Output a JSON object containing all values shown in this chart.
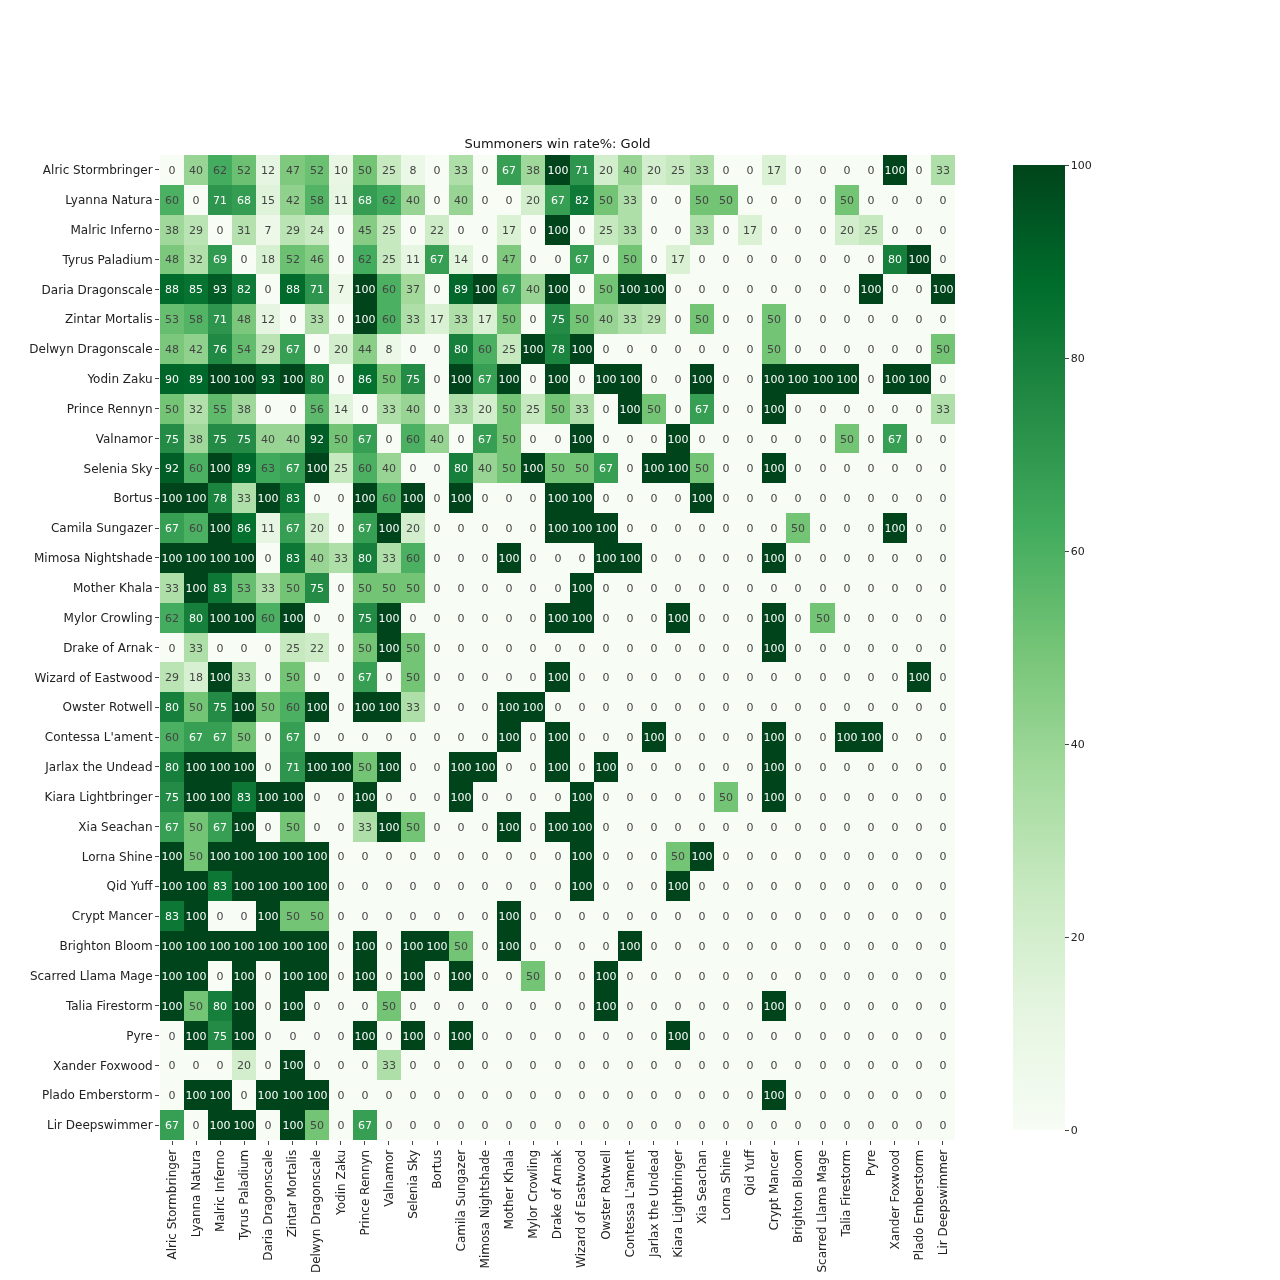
{
  "chart_data": {
    "type": "heatmap",
    "title": "Summoners win rate%: Gold",
    "categories": [
      "Alric Stormbringer",
      "Lyanna Natura",
      "Malric Inferno",
      "Tyrus Paladium",
      "Daria Dragonscale",
      "Zintar Mortalis",
      "Delwyn Dragonscale",
      "Yodin Zaku",
      "Prince Rennyn",
      "Valnamor",
      "Selenia Sky",
      "Bortus",
      "Camila Sungazer",
      "Mimosa Nightshade",
      "Mother Khala",
      "Mylor Crowling",
      "Drake of Arnak",
      "Wizard of Eastwood",
      "Owster Rotwell",
      "Contessa L'ament",
      "Jarlax the Undead",
      "Kiara Lightbringer",
      "Xia Seachan",
      "Lorna Shine",
      "Qid Yuff",
      "Crypt Mancer",
      "Brighton Bloom",
      "Scarred Llama Mage",
      "Talia Firestorm",
      "Pyre",
      "Xander Foxwood",
      "Plado Emberstorm",
      "Lir Deepswimmer"
    ],
    "y_categories": [
      "Alric Stormbringer",
      "Lyanna Natura",
      "Malric Inferno",
      "Tyrus Paladium",
      "Daria Dragonscale",
      "Zintar Mortalis",
      "Delwyn Dragonscale",
      "Yodin Zaku",
      "Prince Rennyn",
      "Valnamor",
      "Selenia Sky",
      "Bortus",
      "Camila Sungazer",
      "Mimosa Nightshade",
      "Mother Khala",
      "Mylor Crowling",
      "Drake of Arnak",
      "Wizard of Eastwood",
      "Owster Rotwell",
      "Contessa L'ament",
      "Jarlax the Undead",
      "Kiara Lightbringer",
      "Xia Seachan",
      "Lorna Shine",
      "Qid Yuff",
      "Crypt Mancer",
      "Brighton Bloom",
      "Scarred Llama Mage",
      "Talia Firestorm",
      "Pyre",
      "Xander Foxwood",
      "Plado Emberstorm",
      "Lir Deepswimmer"
    ],
    "cells": [
      [
        0,
        40,
        62,
        52,
        12,
        47,
        52,
        10,
        50,
        25,
        8,
        0,
        33,
        0,
        67,
        38,
        100,
        71,
        20,
        40,
        20,
        25,
        33,
        0,
        0,
        17,
        0,
        0,
        0,
        0,
        100,
        0,
        33
      ],
      [
        60,
        0,
        71,
        68,
        15,
        42,
        58,
        11,
        68,
        62,
        40,
        0,
        40,
        0,
        0,
        20,
        67,
        82,
        50,
        33,
        0,
        0,
        50,
        50,
        0,
        0,
        0,
        0,
        50,
        0,
        0,
        0,
        0
      ],
      [
        38,
        29,
        0,
        31,
        7,
        29,
        24,
        0,
        45,
        25,
        0,
        22,
        0,
        0,
        17,
        0,
        100,
        0,
        25,
        33,
        0,
        0,
        33,
        0,
        17,
        0,
        0,
        0,
        20,
        25,
        0,
        0,
        0
      ],
      [
        48,
        32,
        69,
        0,
        18,
        52,
        46,
        0,
        62,
        25,
        11,
        67,
        14,
        0,
        47,
        0,
        0,
        67,
        0,
        50,
        0,
        17,
        0,
        0,
        0,
        0,
        0,
        0,
        0,
        0,
        80,
        100,
        0
      ],
      [
        88,
        85,
        93,
        82,
        0,
        88,
        71,
        7,
        100,
        60,
        37,
        0,
        89,
        100,
        67,
        40,
        100,
        0,
        50,
        100,
        100,
        0,
        0,
        0,
        0,
        0,
        0,
        0,
        0,
        100,
        0,
        0,
        100
      ],
      [
        53,
        58,
        71,
        48,
        12,
        0,
        33,
        0,
        100,
        60,
        33,
        17,
        33,
        17,
        50,
        0,
        75,
        50,
        40,
        33,
        29,
        0,
        50,
        0,
        0,
        50,
        0,
        0,
        0,
        0,
        0,
        0,
        0
      ],
      [
        48,
        42,
        76,
        54,
        29,
        67,
        0,
        20,
        44,
        8,
        0,
        0,
        80,
        60,
        25,
        100,
        78,
        100,
        0,
        0,
        0,
        0,
        0,
        0,
        0,
        50,
        0,
        0,
        0,
        0,
        0,
        0,
        50
      ],
      [
        90,
        89,
        100,
        100,
        93,
        100,
        80,
        0,
        86,
        50,
        75,
        0,
        100,
        67,
        100,
        0,
        100,
        0,
        100,
        100,
        0,
        0,
        100,
        0,
        0,
        100,
        100,
        100,
        100,
        0,
        100,
        100,
        0
      ],
      [
        50,
        32,
        55,
        38,
        0,
        0,
        56,
        14,
        0,
        33,
        40,
        0,
        33,
        20,
        50,
        25,
        50,
        33,
        0,
        100,
        50,
        0,
        67,
        0,
        0,
        100,
        0,
        0,
        0,
        0,
        0,
        0,
        33
      ],
      [
        75,
        38,
        75,
        75,
        40,
        40,
        92,
        50,
        67,
        0,
        60,
        40,
        0,
        67,
        50,
        0,
        0,
        100,
        0,
        0,
        0,
        100,
        0,
        0,
        0,
        0,
        0,
        0,
        50,
        0,
        67,
        0,
        0
      ],
      [
        92,
        60,
        100,
        89,
        63,
        67,
        100,
        25,
        60,
        40,
        0,
        0,
        80,
        40,
        50,
        100,
        50,
        50,
        67,
        0,
        100,
        100,
        50,
        0,
        0,
        100,
        0,
        0,
        0,
        0,
        0,
        0,
        0
      ],
      [
        100,
        100,
        78,
        33,
        100,
        83,
        0,
        0,
        100,
        60,
        100,
        0,
        100,
        0,
        0,
        0,
        100,
        100,
        0,
        0,
        0,
        0,
        100,
        0,
        0,
        0,
        0,
        0,
        0,
        0,
        0,
        0,
        0
      ],
      [
        67,
        60,
        100,
        86,
        11,
        67,
        20,
        0,
        67,
        100,
        20,
        0,
        0,
        0,
        0,
        0,
        100,
        100,
        100,
        0,
        0,
        0,
        0,
        0,
        0,
        0,
        50,
        0,
        0,
        0,
        100,
        0,
        0
      ],
      [
        100,
        100,
        100,
        100,
        0,
        83,
        40,
        33,
        80,
        33,
        60,
        0,
        0,
        0,
        100,
        0,
        0,
        0,
        100,
        100,
        0,
        0,
        0,
        0,
        0,
        100,
        0,
        0,
        0,
        0,
        0,
        0,
        0
      ],
      [
        33,
        100,
        83,
        53,
        33,
        50,
        75,
        0,
        50,
        50,
        50,
        0,
        0,
        0,
        0,
        0,
        0,
        100,
        0,
        0,
        0,
        0,
        0,
        0,
        0,
        0,
        0,
        0,
        0,
        0,
        0,
        0,
        0
      ],
      [
        62,
        80,
        100,
        100,
        60,
        100,
        0,
        0,
        75,
        100,
        0,
        0,
        0,
        0,
        0,
        0,
        100,
        100,
        0,
        0,
        0,
        100,
        0,
        0,
        0,
        100,
        0,
        50,
        0,
        0,
        0,
        0,
        0
      ],
      [
        0,
        33,
        0,
        0,
        0,
        25,
        22,
        0,
        50,
        100,
        50,
        0,
        0,
        0,
        0,
        0,
        0,
        0,
        0,
        0,
        0,
        0,
        0,
        0,
        0,
        100,
        0,
        0,
        0,
        0,
        0,
        0,
        0
      ],
      [
        29,
        18,
        100,
        33,
        0,
        50,
        0,
        0,
        67,
        0,
        50,
        0,
        0,
        0,
        0,
        0,
        100,
        0,
        0,
        0,
        0,
        0,
        0,
        0,
        0,
        0,
        0,
        0,
        0,
        0,
        0,
        100,
        0
      ],
      [
        80,
        50,
        75,
        100,
        50,
        60,
        100,
        0,
        100,
        100,
        33,
        0,
        0,
        0,
        100,
        100,
        0,
        0,
        0,
        0,
        0,
        0,
        0,
        0,
        0,
        0,
        0,
        0,
        0,
        0,
        0,
        0,
        0
      ],
      [
        60,
        67,
        67,
        50,
        0,
        67,
        0,
        0,
        0,
        0,
        0,
        0,
        0,
        0,
        100,
        0,
        100,
        0,
        0,
        0,
        100,
        0,
        0,
        0,
        0,
        100,
        0,
        0,
        100,
        100,
        0,
        0,
        0
      ],
      [
        80,
        100,
        100,
        100,
        0,
        71,
        100,
        100,
        50,
        100,
        0,
        0,
        100,
        100,
        0,
        0,
        100,
        0,
        100,
        0,
        0,
        0,
        0,
        0,
        0,
        100,
        0,
        0,
        0,
        0,
        0,
        0,
        0
      ],
      [
        75,
        100,
        100,
        83,
        100,
        100,
        0,
        0,
        100,
        0,
        0,
        0,
        100,
        0,
        0,
        0,
        0,
        100,
        0,
        0,
        0,
        0,
        0,
        50,
        0,
        100,
        0,
        0,
        0,
        0,
        0,
        0,
        0
      ],
      [
        67,
        50,
        67,
        100,
        0,
        50,
        0,
        0,
        33,
        100,
        50,
        0,
        0,
        0,
        100,
        0,
        100,
        100,
        0,
        0,
        0,
        0,
        0,
        0,
        0,
        0,
        0,
        0,
        0,
        0,
        0,
        0,
        0
      ],
      [
        100,
        50,
        100,
        100,
        100,
        100,
        100,
        0,
        0,
        0,
        0,
        0,
        0,
        0,
        0,
        0,
        0,
        100,
        0,
        0,
        0,
        50,
        100,
        0,
        0,
        0,
        0,
        0,
        0,
        0,
        0,
        0,
        0
      ],
      [
        100,
        100,
        83,
        100,
        100,
        100,
        100,
        0,
        0,
        0,
        0,
        0,
        0,
        0,
        0,
        0,
        0,
        100,
        0,
        0,
        0,
        100,
        0,
        0,
        0,
        0,
        0,
        0,
        0,
        0,
        0,
        0,
        0
      ],
      [
        83,
        100,
        0,
        0,
        100,
        50,
        50,
        0,
        0,
        0,
        0,
        0,
        0,
        0,
        100,
        0,
        0,
        0,
        0,
        0,
        0,
        0,
        0,
        0,
        0,
        0,
        0,
        0,
        0,
        0,
        0,
        0,
        0
      ],
      [
        100,
        100,
        100,
        100,
        100,
        100,
        100,
        0,
        100,
        0,
        100,
        100,
        50,
        0,
        100,
        0,
        0,
        0,
        0,
        100,
        0,
        0,
        0,
        0,
        0,
        0,
        0,
        0,
        0,
        0,
        0,
        0,
        0
      ],
      [
        100,
        100,
        0,
        100,
        0,
        100,
        100,
        0,
        100,
        0,
        100,
        0,
        100,
        0,
        0,
        50,
        0,
        0,
        100,
        0,
        0,
        0,
        0,
        0,
        0,
        0,
        0,
        0,
        0,
        0,
        0,
        0,
        0
      ],
      [
        100,
        50,
        80,
        100,
        0,
        100,
        0,
        0,
        0,
        50,
        0,
        0,
        0,
        0,
        0,
        0,
        0,
        0,
        100,
        0,
        0,
        0,
        0,
        0,
        0,
        100,
        0,
        0,
        0,
        0,
        0,
        0,
        0
      ],
      [
        0,
        100,
        75,
        100,
        0,
        0,
        0,
        0,
        100,
        0,
        100,
        0,
        100,
        0,
        0,
        0,
        0,
        0,
        0,
        0,
        0,
        100,
        0,
        0,
        0,
        0,
        0,
        0,
        0,
        0,
        0,
        0,
        0
      ],
      [
        0,
        0,
        0,
        20,
        0,
        100,
        0,
        0,
        0,
        33,
        0,
        0,
        0,
        0,
        0,
        0,
        0,
        0,
        0,
        0,
        0,
        0,
        0,
        0,
        0,
        0,
        0,
        0,
        0,
        0,
        0,
        0,
        0
      ],
      [
        0,
        100,
        100,
        0,
        100,
        100,
        100,
        0,
        0,
        0,
        0,
        0,
        0,
        0,
        0,
        0,
        0,
        0,
        0,
        0,
        0,
        0,
        0,
        0,
        0,
        100,
        0,
        0,
        0,
        0,
        0,
        0,
        0
      ],
      [
        67,
        0,
        100,
        100,
        0,
        100,
        50,
        0,
        67,
        0,
        0,
        0,
        0,
        0,
        0,
        0,
        0,
        0,
        0,
        0,
        0,
        0,
        0,
        0,
        0,
        0,
        0,
        0,
        0,
        0,
        0,
        0,
        0
      ]
    ],
    "clim": [
      0,
      100
    ],
    "cticks": [
      0,
      20,
      40,
      60,
      80,
      100
    ],
    "data_labels": true
  }
}
